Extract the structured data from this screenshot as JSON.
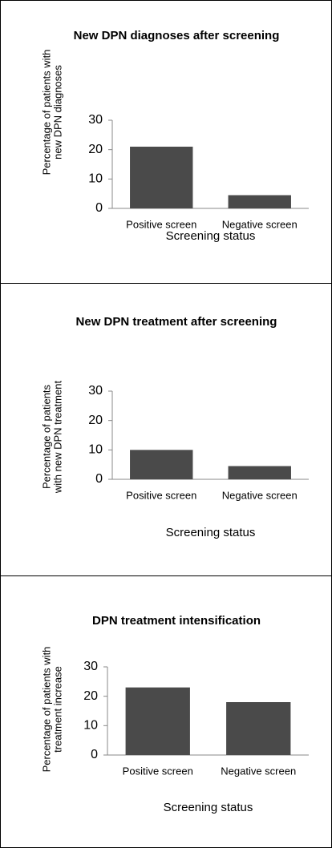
{
  "chart_data": [
    {
      "type": "bar",
      "title": "New DPN diagnoses after screening",
      "ylabel": [
        "Percentage of patients with",
        "new DPN diagnoses"
      ],
      "xlabel": "Screening status",
      "categories": [
        "Positive screen",
        "Negative screen"
      ],
      "values": [
        21,
        4.5
      ],
      "color": "#4a4a4a",
      "ylim": [
        0,
        30
      ],
      "yticks": [
        0,
        10,
        20,
        30
      ]
    },
    {
      "type": "bar",
      "title": "New DPN treatment after screening",
      "ylabel": [
        "Percentage of patients",
        "with new DPN treatment"
      ],
      "xlabel": "Screening status",
      "categories": [
        "Positive screen",
        "Negative screen"
      ],
      "values": [
        10,
        4.5
      ],
      "color": "#4a4a4a",
      "ylim": [
        0,
        30
      ],
      "yticks": [
        0,
        10,
        20,
        30
      ]
    },
    {
      "type": "bar",
      "title": "DPN treatment intensification",
      "ylabel": [
        "Percentage of patients with",
        "treatment increase"
      ],
      "xlabel": "Screening status",
      "categories": [
        "Positive screen",
        "Negative screen"
      ],
      "values": [
        23,
        18
      ],
      "color": "#4a4a4a",
      "ylim": [
        0,
        30
      ],
      "yticks": [
        0,
        10,
        20,
        30
      ]
    }
  ]
}
